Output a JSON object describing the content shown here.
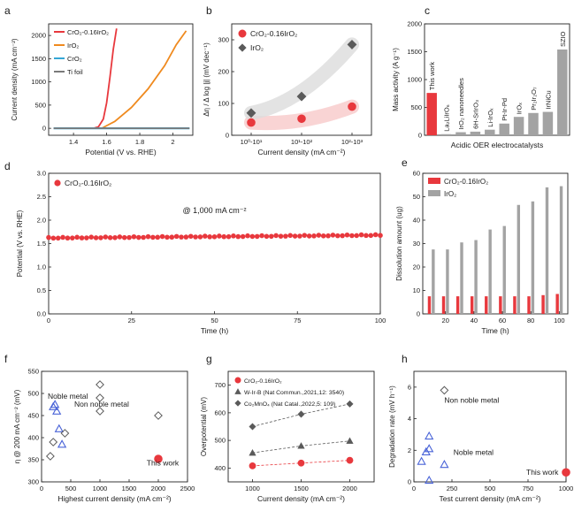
{
  "colors": {
    "red": "#e8383d",
    "orange": "#ef8a1f",
    "cyan": "#35a7d6",
    "gray": "#7a7a7a",
    "lightgray": "#a3a3a3",
    "blue": "#4a64d8",
    "darkgray": "#5a5a5a"
  },
  "chart_data": [
    {
      "panel": "a",
      "type": "line",
      "xlabel": "Potential (V vs. RHE)",
      "ylabel": "Current density (mA cm⁻²)",
      "xlim": [
        1.25,
        2.12
      ],
      "ylim": [
        -150,
        2250
      ],
      "xticks": [
        1.4,
        1.6,
        1.8,
        2.0
      ],
      "yticks": [
        0,
        500,
        1000,
        1500,
        2000
      ],
      "series": [
        {
          "name": "CrO₂-0.16IrO₂",
          "color": "red",
          "x": [
            1.52,
            1.55,
            1.58,
            1.6,
            1.62,
            1.64,
            1.66
          ],
          "y": [
            0,
            30,
            200,
            550,
            1100,
            1700,
            2150
          ]
        },
        {
          "name": "IrO₂",
          "color": "orange",
          "x": [
            1.57,
            1.65,
            1.75,
            1.85,
            1.95,
            2.02,
            2.08
          ],
          "y": [
            0,
            150,
            450,
            850,
            1350,
            1800,
            2100
          ]
        },
        {
          "name": "CrO₂",
          "color": "cyan",
          "x": [
            1.28,
            2.1
          ],
          "y": [
            0,
            0
          ]
        },
        {
          "name": "Ti foil",
          "color": "gray",
          "x": [
            1.28,
            2.1
          ],
          "y": [
            0,
            0
          ]
        }
      ]
    },
    {
      "panel": "b",
      "type": "scatter",
      "xlabel": "Current density (mA cm⁻²)",
      "ylabel": "Δη / Δ log |j| (mV dec⁻¹)",
      "categories": [
        "10⁰-10¹",
        "10¹-10²",
        "10²-10³"
      ],
      "ylim": [
        0,
        350
      ],
      "yticks": [
        0,
        100,
        200,
        300
      ],
      "series": [
        {
          "name": "CrO₂-0.16IrO₂",
          "color": "red",
          "marker": "circle",
          "values": [
            40,
            52,
            90
          ]
        },
        {
          "name": "IrO₂",
          "color": "darkgray",
          "marker": "diamond",
          "values": [
            70,
            122,
            285
          ]
        }
      ]
    },
    {
      "panel": "c",
      "type": "bar",
      "xlabel": "Acidic OER electrocatalysts",
      "ylabel": "Mass activity (A g⁻¹)",
      "ylim": [
        0,
        2000
      ],
      "yticks": [
        0,
        500,
        1000,
        1500,
        2000
      ],
      "categories": [
        "This work",
        "La₂LiIrO₆",
        "IrO₂ nanoneedles",
        "6H-SrIrO₃",
        "Li-IrOₓ",
        "Pt-Ir-Pd",
        "IrOₓ",
        "Pr₂Ir₂O₇",
        "IrNiCu",
        "SZIO"
      ],
      "values": [
        760,
        20,
        55,
        65,
        100,
        210,
        330,
        400,
        420,
        1540
      ],
      "bar_colors": [
        "red",
        "lightgray",
        "lightgray",
        "lightgray",
        "lightgray",
        "lightgray",
        "lightgray",
        "lightgray",
        "lightgray",
        "lightgray"
      ]
    },
    {
      "panel": "d",
      "type": "scatter",
      "xlabel": "Time (h)",
      "ylabel": "Potential (V vs. RHE)",
      "xlim": [
        0,
        100
      ],
      "ylim": [
        0,
        3
      ],
      "xticks": [
        0,
        25,
        50,
        75,
        100
      ],
      "yticks": [
        0.0,
        0.5,
        1.0,
        1.5,
        2.0,
        2.5,
        3.0
      ],
      "annotation": "@ 1,000 mA cm⁻²",
      "series": [
        {
          "name": "CrO₂-0.16IrO₂",
          "color": "red",
          "x_start": 0,
          "x_end": 100,
          "y_start": 1.62,
          "y_end": 1.68
        }
      ]
    },
    {
      "panel": "e",
      "type": "bar",
      "xlabel": "Time (h)",
      "ylabel": "Dissolution amount (ug)",
      "ylim": [
        0,
        60
      ],
      "yticks": [
        0,
        10,
        20,
        30,
        40,
        50,
        60
      ],
      "xticks": [
        20,
        40,
        60,
        80,
        100
      ],
      "categories": [
        10,
        20,
        30,
        40,
        50,
        60,
        70,
        80,
        90,
        100
      ],
      "series": [
        {
          "name": "CrO₂-0.16IrO₂",
          "color": "red",
          "values": [
            7.5,
            7.5,
            7.5,
            7.5,
            7.5,
            7.5,
            7.5,
            7.5,
            8.0,
            8.5
          ]
        },
        {
          "name": "IrO₂",
          "color": "lightgray",
          "values": [
            27.5,
            27.5,
            30.5,
            31.5,
            36.0,
            37.5,
            46.5,
            48.0,
            54.0,
            54.5
          ]
        }
      ]
    },
    {
      "panel": "f",
      "type": "scatter",
      "xlabel": "Highest current density (mA cm⁻²)",
      "ylabel": "η @ 200 mA cm⁻² (mV)",
      "xlim": [
        0,
        2500
      ],
      "ylim": [
        300,
        550
      ],
      "xticks": [
        0,
        500,
        1000,
        1500,
        2000,
        2500
      ],
      "yticks": [
        300,
        350,
        400,
        450,
        500,
        550
      ],
      "annotations": [
        "Noble metal",
        "Non noble metal",
        "This work"
      ],
      "series": [
        {
          "name": "Noble metal",
          "color": "blue",
          "marker": "triangle",
          "x": [
            200,
            230,
            260,
            300,
            350
          ],
          "y": [
            470,
            475,
            460,
            420,
            385
          ]
        },
        {
          "name": "Non noble metal",
          "color": "darkgray",
          "marker": "diamond",
          "x": [
            150,
            200,
            400,
            1000,
            1000,
            1000,
            2000
          ],
          "y": [
            358,
            390,
            410,
            520,
            490,
            460,
            450
          ]
        },
        {
          "name": "This work",
          "color": "red",
          "marker": "circle",
          "x": [
            2000
          ],
          "y": [
            352
          ]
        }
      ]
    },
    {
      "panel": "g",
      "type": "line",
      "xlabel": "Current density (mA cm⁻²)",
      "ylabel": "Overpotential (mV)",
      "xlim": [
        750,
        2250
      ],
      "ylim": [
        350,
        750
      ],
      "xticks": [
        1000,
        1500,
        2000
      ],
      "yticks": [
        400,
        500,
        600,
        700
      ],
      "series": [
        {
          "name": "CrO₂-0.16IrO₂",
          "color": "red",
          "marker": "circle",
          "x": [
            1000,
            1500,
            2000
          ],
          "y": [
            408,
            418,
            428
          ]
        },
        {
          "name": "W-Ir-B (Nat Commun.,2021,12: 3540)",
          "color": "darkgray",
          "marker": "triangle",
          "x": [
            1000,
            1500,
            2000
          ],
          "y": [
            455,
            480,
            498
          ]
        },
        {
          "name": "Co₂MnO₄ (Nat Catal.,2022,5: 109)",
          "color": "darkgray",
          "marker": "diamond",
          "x": [
            1000,
            1500,
            2000
          ],
          "y": [
            550,
            595,
            632
          ]
        }
      ]
    },
    {
      "panel": "h",
      "type": "scatter",
      "xlabel": "Test current density (mA cm⁻²)",
      "ylabel": "Degradation rate (mV h⁻¹)",
      "xlim": [
        0,
        1000
      ],
      "ylim": [
        0,
        7
      ],
      "xticks": [
        0,
        250,
        500,
        750,
        1000
      ],
      "yticks": [
        0,
        2,
        4,
        6
      ],
      "annotations": [
        "Non noble metal",
        "Noble metal",
        "This work"
      ],
      "series": [
        {
          "name": "Noble metal",
          "color": "blue",
          "marker": "triangle",
          "x": [
            50,
            80,
            100,
            100,
            200,
            100
          ],
          "y": [
            1.3,
            1.9,
            2.1,
            2.9,
            1.1,
            0.1
          ]
        },
        {
          "name": "Non noble metal",
          "color": "darkgray",
          "marker": "diamond",
          "x": [
            200
          ],
          "y": [
            5.8
          ]
        },
        {
          "name": "This work",
          "color": "red",
          "marker": "circle",
          "x": [
            1000
          ],
          "y": [
            0.6
          ]
        }
      ]
    }
  ],
  "panel_labels": [
    "a",
    "b",
    "c",
    "d",
    "e",
    "f",
    "g",
    "h"
  ]
}
